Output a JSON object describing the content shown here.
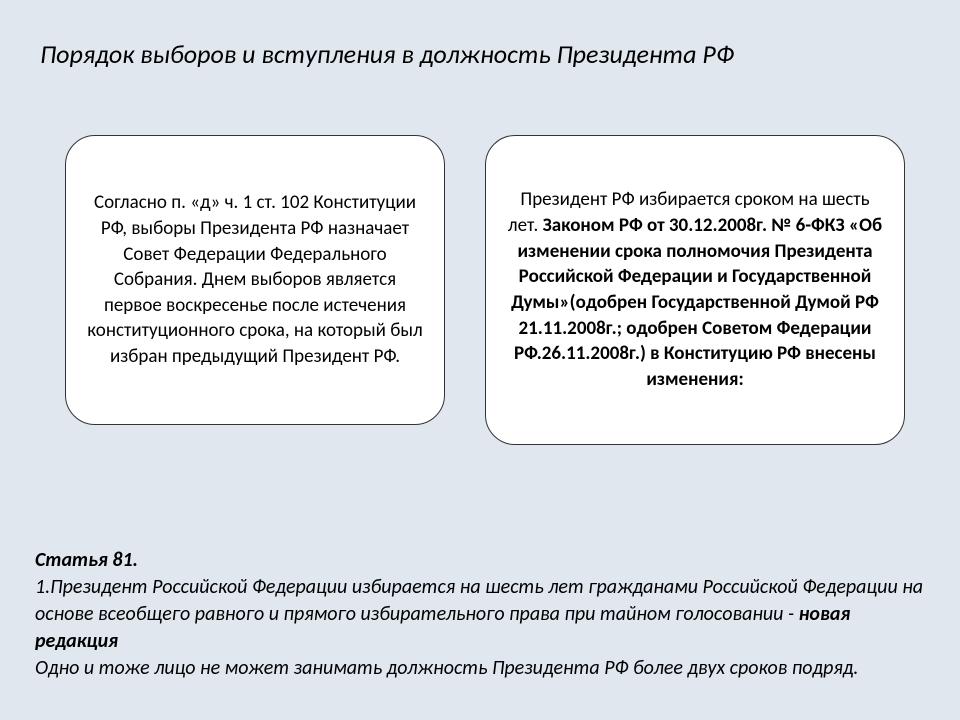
{
  "styling": {
    "background_color": "#e0e7ef",
    "box_background": "#ffffff",
    "box_border_color": "#333333",
    "box_border_radius": 30,
    "text_color": "#000000",
    "title_fontsize": 26,
    "box_fontsize": 19,
    "article_fontsize": 20
  },
  "title": "Порядок выборов и вступления в должность Президента РФ",
  "box_left": {
    "text": "Согласно п. «д» ч. 1 ст. 102 Конституции РФ, выборы Президента РФ назначает Совет Федерации Федерального Собрания. Днем выборов является первое воскресенье после истечения конституционного срока, на который был избран предыдущий Президент РФ."
  },
  "box_right": {
    "text_before": "Президент РФ избирается сроком на шесть лет. ",
    "text_bold": "Законом РФ от 30.12.2008г. № 6-ФКЗ «Об изменении срока полномочия Президента Российской Федерации и Государственной Думы»(одобрен Государственной Думой РФ 21.11.2008г.;  одобрен Советом Федерации РФ.26.11.2008г.) в Конституцию РФ внесены изменения:"
  },
  "article": {
    "title": "Статья 81.",
    "line1_prefix": "1.Президент Российской Федерации избирается на шесть лет гражданами Российской Федерации на основе всеобщего равного и прямого избирательного права при тайном голосовании - ",
    "line1_bold": "новая редакция",
    "line2": "  Одно и тоже лицо не может занимать должность Президента РФ более двух сроков подряд."
  }
}
